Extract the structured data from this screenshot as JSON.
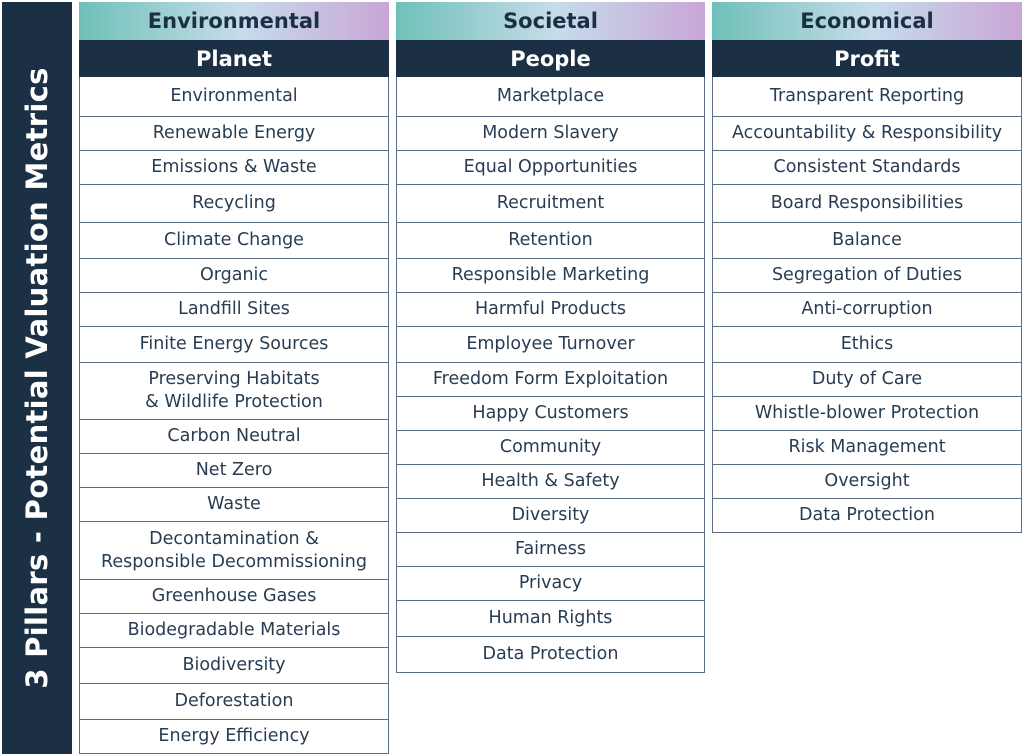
{
  "banner": {
    "title": "3 Pillars - Potential Valuation Metrics"
  },
  "pillars": [
    {
      "category": "Environmental",
      "focus": "Planet",
      "items": [
        "Environmental",
        "Renewable Energy",
        "Emissions & Waste",
        "Recycling",
        "Climate Change",
        "Organic",
        "Landfill Sites",
        "Finite Energy Sources",
        "Preserving Habitats\n& Wildlife Protection",
        "Carbon Neutral",
        "Net Zero",
        "Waste",
        "Decontamination &\nResponsible Decommissioning",
        "Greenhouse Gases",
        "Biodegradable Materials",
        "Biodiversity",
        "Deforestation",
        "Energy Efficiency"
      ]
    },
    {
      "category": "Societal",
      "focus": "People",
      "items": [
        "Marketplace",
        "Modern Slavery",
        "Equal Opportunities",
        "Recruitment",
        "Retention",
        "Responsible Marketing",
        "Harmful Products",
        "Employee Turnover",
        "Freedom Form Exploitation",
        "Happy Customers",
        "Community",
        "Health & Safety",
        "Diversity",
        "Fairness",
        "Privacy",
        "Human Rights",
        "Data Protection"
      ]
    },
    {
      "category": "Economical",
      "focus": "Profit",
      "items": [
        "Transparent Reporting",
        "Accountability & Responsibility",
        "Consistent Standards",
        "Board Responsibilities",
        "Balance",
        "Segregation of Duties",
        "Anti-corruption",
        "Ethics",
        "Duty of Care",
        "Whistle-blower Protection",
        "Risk Management",
        "Oversight",
        "Data Protection"
      ]
    }
  ]
}
